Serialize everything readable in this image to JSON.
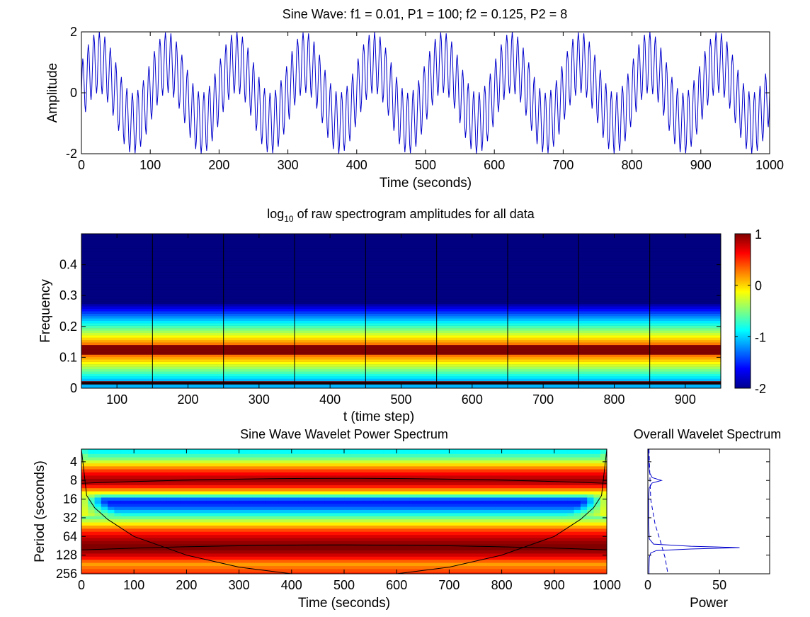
{
  "chart_data": [
    {
      "type": "line",
      "title": "Sine Wave: f1 = 0.01, P1 = 100; f2 = 0.125, P2 = 8",
      "xlabel": "Time (seconds)",
      "ylabel": "Amplitude",
      "xlim": [
        0,
        1000
      ],
      "ylim": [
        -2,
        2
      ],
      "xticks": [
        "0",
        "100",
        "200",
        "300",
        "400",
        "500",
        "600",
        "700",
        "800",
        "900",
        "1000"
      ],
      "yticks": [
        "-2",
        "0",
        "2"
      ],
      "series": [
        {
          "components": [
            {
              "amplitude": 1,
              "frequency": 0.01
            },
            {
              "amplitude": 1,
              "frequency": 0.125
            }
          ],
          "x_range": [
            0,
            1000
          ],
          "color": "#0000cc"
        }
      ]
    },
    {
      "type": "heatmap",
      "title_main": "log",
      "title_sub": "10",
      "title_rest": " of raw spectrogram amplitudes for all data",
      "xlabel": "t (time step)",
      "ylabel": "Frequency",
      "xlim": [
        50,
        950
      ],
      "ylim": [
        0,
        0.5
      ],
      "xticks": [
        "100",
        "200",
        "300",
        "400",
        "500",
        "600",
        "700",
        "800",
        "900"
      ],
      "yticks": [
        "0",
        "0.1",
        "0.2",
        "0.3",
        "0.4"
      ],
      "window_boundaries": [
        150,
        250,
        350,
        450,
        550,
        650,
        750,
        850
      ],
      "bands": [
        {
          "f_lo": 0.0,
          "f_hi": 0.012,
          "log_amp": -1.1
        },
        {
          "f_lo": 0.012,
          "f_hi": 0.02,
          "log_amp": 1.0
        },
        {
          "f_lo": 0.11,
          "f_hi": 0.14,
          "log_amp": 1.0
        }
      ],
      "colorbar": {
        "min": -2,
        "max": 1,
        "ticks": [
          "-2",
          "-1",
          "0",
          "1"
        ]
      }
    },
    {
      "type": "heatmap",
      "title": "Sine Wave Wavelet Power Spectrum",
      "xlabel": "Time (seconds)",
      "ylabel": "Period (seconds)",
      "xlim": [
        0,
        1000
      ],
      "ylim": [
        2.5,
        256
      ],
      "yscale": "log2",
      "xticks": [
        "0",
        "100",
        "200",
        "300",
        "400",
        "500",
        "600",
        "700",
        "800",
        "900",
        "1000"
      ],
      "yticks": [
        "4",
        "8",
        "16",
        "32",
        "64",
        "128",
        "256"
      ],
      "rows": [
        {
          "period": 2.8,
          "level": 0.38
        },
        {
          "period": 3.2,
          "level": 0.44
        },
        {
          "period": 3.6,
          "level": 0.5
        },
        {
          "period": 4.0,
          "level": 0.58
        },
        {
          "period": 4.5,
          "level": 0.66
        },
        {
          "period": 5.0,
          "level": 0.74
        },
        {
          "period": 5.6,
          "level": 0.82
        },
        {
          "period": 6.3,
          "level": 0.88
        },
        {
          "period": 7.1,
          "level": 0.93
        },
        {
          "period": 8.0,
          "level": 0.97
        },
        {
          "period": 9.0,
          "level": 0.93
        },
        {
          "period": 10.1,
          "level": 0.85
        },
        {
          "period": 11.3,
          "level": 0.74
        },
        {
          "period": 12.7,
          "level": 0.62
        },
        {
          "period": 14.3,
          "level": 0.44
        },
        {
          "period": 16.0,
          "level": 0.22
        },
        {
          "period": 18.0,
          "level": 0.15
        },
        {
          "period": 20.2,
          "level": 0.18
        },
        {
          "period": 22.6,
          "level": 0.24
        },
        {
          "period": 25.4,
          "level": 0.32
        },
        {
          "period": 28.5,
          "level": 0.4
        },
        {
          "period": 32.0,
          "level": 0.48
        },
        {
          "period": 35.9,
          "level": 0.56
        },
        {
          "period": 40.3,
          "level": 0.64
        },
        {
          "period": 45.3,
          "level": 0.72
        },
        {
          "period": 50.8,
          "level": 0.8
        },
        {
          "period": 57.0,
          "level": 0.86
        },
        {
          "period": 64.0,
          "level": 0.91
        },
        {
          "period": 71.8,
          "level": 0.95
        },
        {
          "period": 80.6,
          "level": 0.98
        },
        {
          "period": 90.5,
          "level": 1.0
        },
        {
          "period": 101.6,
          "level": 1.0
        },
        {
          "period": 114.0,
          "level": 0.97
        },
        {
          "period": 128.0,
          "level": 0.92
        },
        {
          "period": 143.7,
          "level": 0.86
        },
        {
          "period": 161.3,
          "level": 0.78
        },
        {
          "period": 181.0,
          "level": 0.72
        },
        {
          "period": 203.2,
          "level": 0.76
        },
        {
          "period": 228.1,
          "level": 0.8
        },
        {
          "period": 256.0,
          "level": 0.84
        }
      ],
      "edge_fade_periods": [
        2.5,
        30
      ],
      "significance_contours": [
        {
          "period": 8,
          "extent": "full"
        },
        {
          "period": 95,
          "extent": "full"
        }
      ],
      "cone_of_influence": [
        [
          0,
          2.5
        ],
        [
          10,
          14
        ],
        [
          25,
          22
        ],
        [
          50,
          34
        ],
        [
          100,
          64
        ],
        [
          200,
          128
        ],
        [
          300,
          200
        ],
        [
          400,
          256
        ],
        [
          600,
          256
        ],
        [
          700,
          200
        ],
        [
          800,
          128
        ],
        [
          900,
          64
        ],
        [
          950,
          34
        ],
        [
          975,
          22
        ],
        [
          990,
          14
        ],
        [
          1000,
          2.5
        ]
      ]
    },
    {
      "type": "line",
      "title": "Overall Wavelet Spectrum",
      "xlabel": "Power",
      "ylabel": "",
      "xlim": [
        0,
        85
      ],
      "ylim": [
        2.5,
        256
      ],
      "yscale": "log2",
      "xticks": [
        "0",
        "50"
      ],
      "series": [
        {
          "style": "solid",
          "points": [
            [
              0.5,
              2.5
            ],
            [
              0.6,
              4.5
            ],
            [
              1.2,
              6.0
            ],
            [
              3.0,
              7.2
            ],
            [
              9.5,
              8.0
            ],
            [
              3.0,
              8.8
            ],
            [
              1.0,
              10.5
            ],
            [
              0.5,
              16
            ],
            [
              0.5,
              40
            ],
            [
              1.0,
              70
            ],
            [
              4.0,
              85
            ],
            [
              30.0,
              92
            ],
            [
              64.0,
              97
            ],
            [
              30.0,
              102
            ],
            [
              6.0,
              108
            ],
            [
              2.0,
              118
            ],
            [
              1.0,
              140
            ],
            [
              0.8,
              200
            ],
            [
              0.8,
              256
            ]
          ]
        },
        {
          "style": "dashed",
          "points": [
            [
              0.8,
              2.5
            ],
            [
              2.0,
              16
            ],
            [
              5.0,
              40
            ],
            [
              9.0,
              80
            ],
            [
              12.0,
              140
            ],
            [
              14.0,
              256
            ]
          ]
        }
      ]
    }
  ]
}
